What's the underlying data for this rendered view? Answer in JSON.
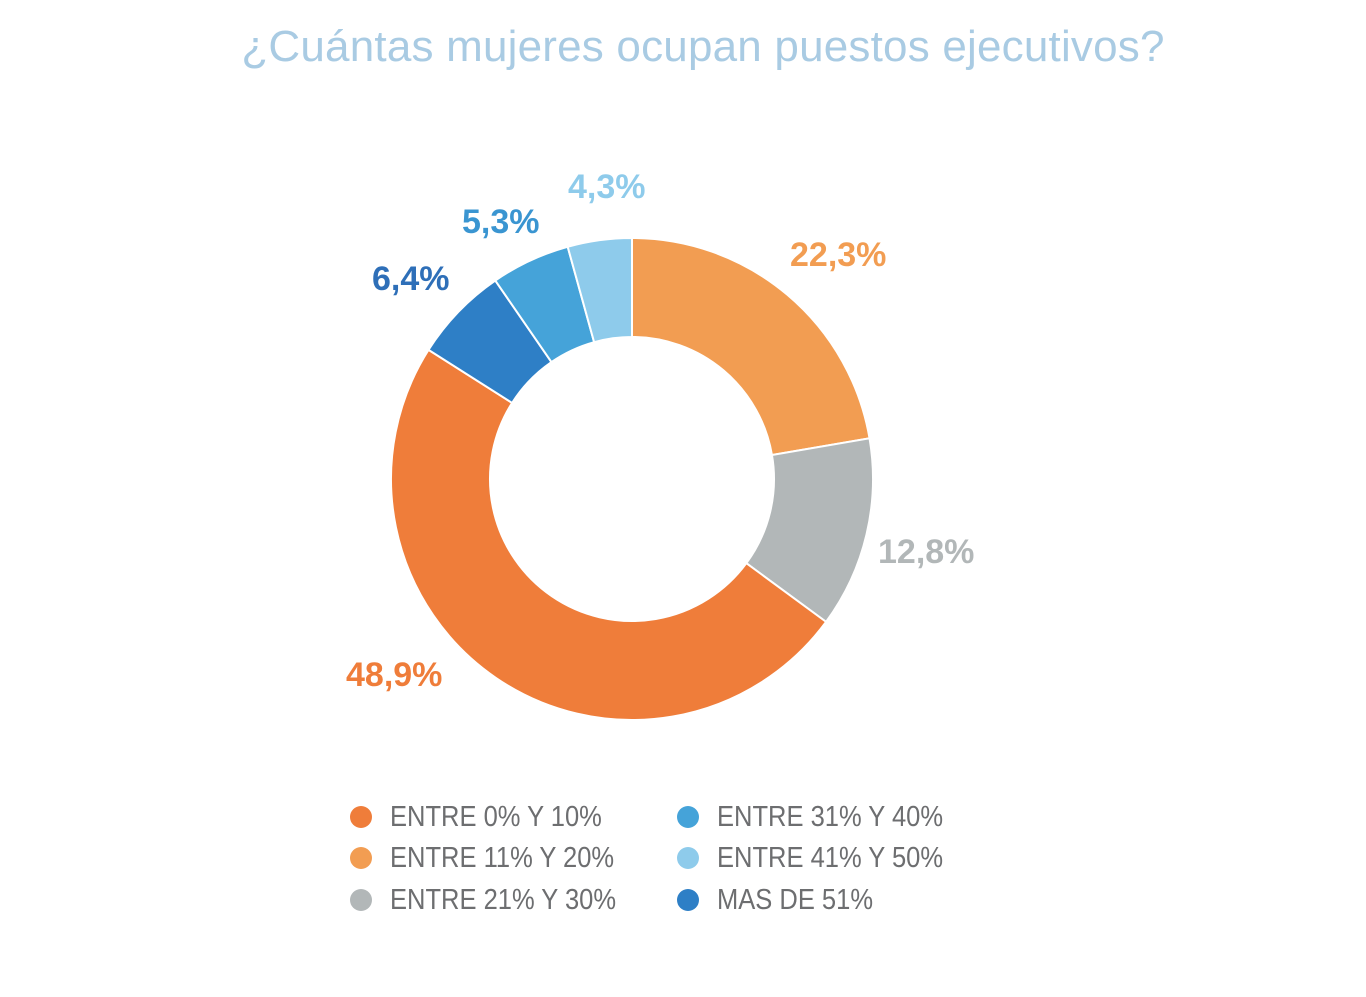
{
  "chart_data": {
    "type": "pie",
    "title": "¿Cuántas mujeres ocupan puestos ejecutivos?",
    "slices": [
      {
        "label": "ENTRE 11% Y 20%",
        "value": 22.3,
        "display": "22,3%",
        "color": "#f29d52",
        "label_color": "#f29d52"
      },
      {
        "label": "ENTRE 21% Y 30%",
        "value": 12.8,
        "display": "12,8%",
        "color": "#b2b7b8",
        "label_color": "#b2b7b8"
      },
      {
        "label": "ENTRE 0% Y 10%",
        "value": 48.9,
        "display": "48,9%",
        "color": "#ef7d3a",
        "label_color": "#ef7d3a"
      },
      {
        "label": "MAS DE 51%",
        "value": 6.4,
        "display": "6,4%",
        "color": "#2e7fc6",
        "label_color": "#2e6fb8"
      },
      {
        "label": "ENTRE 31% Y 40%",
        "value": 5.3,
        "display": "5,3%",
        "color": "#45a3d9",
        "label_color": "#3a95d1"
      },
      {
        "label": "ENTRE 41% Y 50%",
        "value": 4.3,
        "display": "4,3%",
        "color": "#8ecbeb",
        "label_color": "#8ecbeb"
      }
    ],
    "legend": {
      "placement": "bottom",
      "columns": [
        [
          {
            "label": "ENTRE 0% Y 10%",
            "color": "#ef7d3a"
          },
          {
            "label": "ENTRE 11% Y 20%",
            "color": "#f29d52"
          },
          {
            "label": "ENTRE 21% Y 30%",
            "color": "#b2b7b8"
          }
        ],
        [
          {
            "label": "ENTRE 31% Y 40%",
            "color": "#45a3d9"
          },
          {
            "label": "ENTRE 41% Y 50%",
            "color": "#8ecbeb"
          },
          {
            "label": "MAS DE 51%",
            "color": "#2e7fc6"
          }
        ]
      ]
    }
  }
}
